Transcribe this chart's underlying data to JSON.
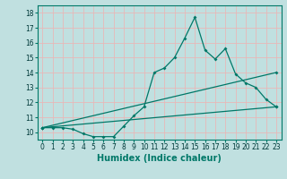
{
  "xlabel": "Humidex (Indice chaleur)",
  "bg_color": "#c0e0e0",
  "grid_color": "#e8b8b8",
  "line_color": "#007868",
  "xlim": [
    -0.5,
    23.5
  ],
  "ylim": [
    9.5,
    18.5
  ],
  "xticks": [
    0,
    1,
    2,
    3,
    4,
    5,
    6,
    7,
    8,
    9,
    10,
    11,
    12,
    13,
    14,
    15,
    16,
    17,
    18,
    19,
    20,
    21,
    22,
    23
  ],
  "yticks": [
    10,
    11,
    12,
    13,
    14,
    15,
    16,
    17,
    18
  ],
  "line1_x": [
    0,
    1,
    2,
    3,
    4,
    5,
    6,
    7,
    8,
    9,
    10,
    11,
    12,
    13,
    14,
    15,
    16,
    17,
    18,
    19,
    20,
    21,
    22,
    23
  ],
  "line1_y": [
    10.3,
    10.3,
    10.3,
    10.2,
    9.9,
    9.7,
    9.7,
    9.7,
    10.4,
    11.1,
    11.7,
    14.0,
    14.3,
    15.0,
    16.3,
    17.7,
    15.5,
    14.9,
    15.6,
    13.9,
    13.3,
    13.0,
    12.2,
    11.7
  ],
  "line2_x": [
    0,
    23
  ],
  "line2_y": [
    10.3,
    14.0
  ],
  "line3_x": [
    0,
    23
  ],
  "line3_y": [
    10.3,
    11.7
  ],
  "tick_fontsize": 5.5,
  "xlabel_fontsize": 7
}
